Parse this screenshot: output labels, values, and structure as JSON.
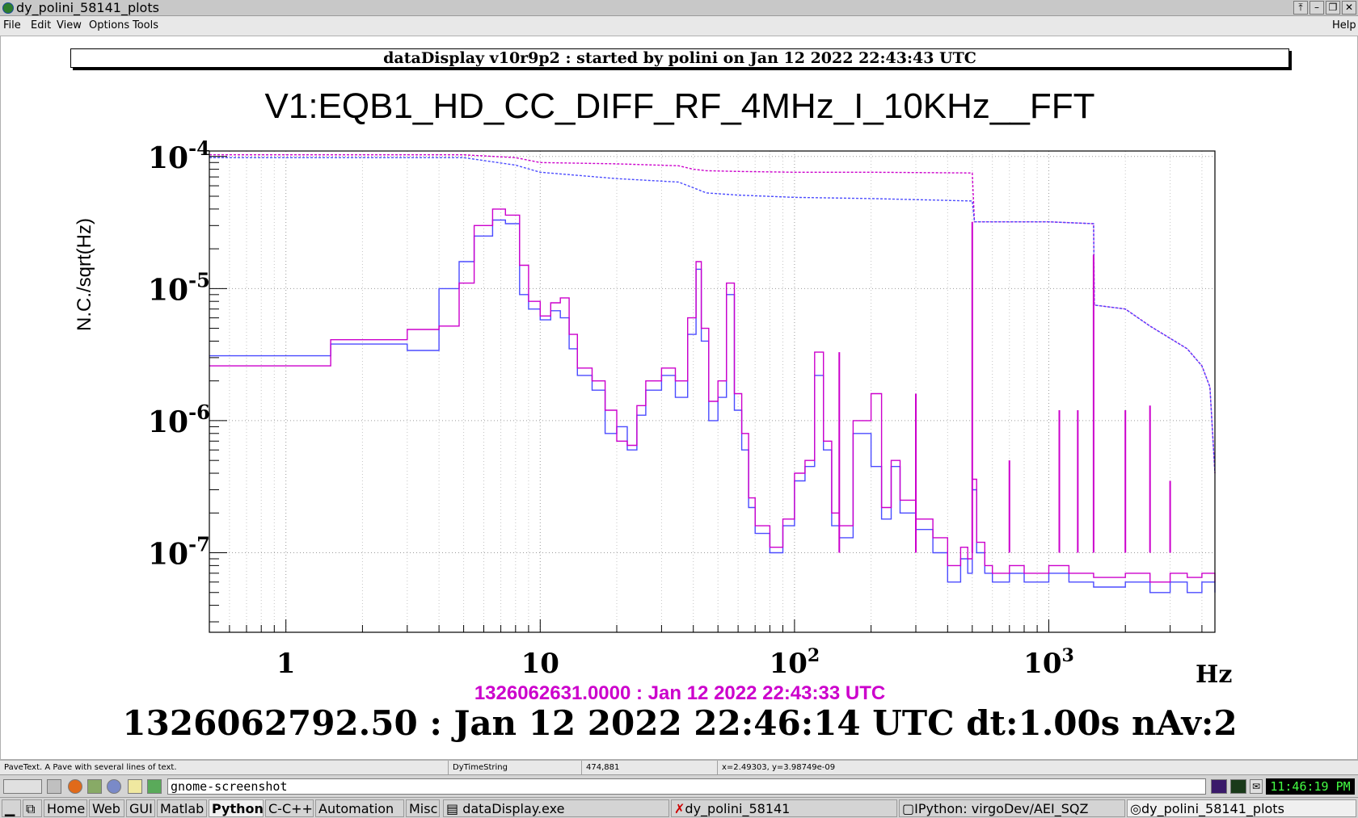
{
  "window": {
    "title": "dy_polini_58141_plots",
    "controls": [
      "⤒",
      "–",
      "❐",
      "✕"
    ]
  },
  "menu": {
    "items": [
      "File",
      "Edit",
      "View",
      "Options",
      "Tools"
    ],
    "help": "Help"
  },
  "plot": {
    "header": "dataDisplay v10r9p2 : started by polini on Jan 12 2022 22:43:43 UTC",
    "title": "V1:EQB1_HD_CC_DIFF_RF_4MHz_I_10KHz__FFT",
    "time_reference": "1326062631.0000 : Jan 12 2022 22:43:33 UTC",
    "time_main": "1326062792.50 : Jan 12 2022 22:46:14 UTC dt:1.00s nAv:2"
  },
  "chart_data": {
    "type": "line",
    "xscale": "log",
    "yscale": "log",
    "xlim": [
      0.5,
      4500
    ],
    "ylim": [
      2.5e-08,
      0.00011
    ],
    "ylabel": "N.C./sqrt(Hz)",
    "xlabel": "Hz",
    "x_ticks": [
      "1",
      "10",
      "10^2",
      "10^3"
    ],
    "y_ticks": [
      "10^-4",
      "10^-5",
      "10^-6",
      "10^-7"
    ],
    "grid": true,
    "series": [
      {
        "color": "#4b4bff",
        "style": "solid",
        "x": [
          0.5,
          1.5,
          3,
          4,
          4.8,
          5.5,
          6.5,
          7.3,
          8.3,
          9,
          10,
          11,
          12,
          13,
          14,
          16,
          18,
          20,
          22,
          24,
          26,
          30,
          34,
          38,
          41,
          43,
          46,
          50,
          54,
          58,
          62,
          66,
          70,
          80,
          90,
          100,
          110,
          120,
          130,
          140,
          150,
          170,
          200,
          220,
          240,
          260,
          300,
          350,
          400,
          450,
          480,
          500,
          520,
          560,
          600,
          700,
          800,
          1000,
          1200,
          1500,
          2000,
          2500,
          3000,
          3500,
          4000,
          4500
        ],
        "y": [
          3.1e-06,
          3.8e-06,
          3.4e-06,
          1e-05,
          1.6e-05,
          2.5e-05,
          3.3e-05,
          3.1e-05,
          9e-06,
          7e-06,
          5.8e-06,
          6.8e-06,
          6e-06,
          3.5e-06,
          2.2e-06,
          1.7e-06,
          8e-07,
          9e-07,
          6e-07,
          1.1e-06,
          1.7e-06,
          2.2e-06,
          1.5e-06,
          4.5e-06,
          1.4e-05,
          4e-06,
          1e-06,
          1.5e-06,
          9e-06,
          1.2e-06,
          6e-07,
          2.2e-07,
          1.4e-07,
          1e-07,
          1.6e-07,
          3.5e-07,
          4.5e-07,
          2.2e-06,
          6e-07,
          1.6e-07,
          1.3e-07,
          8e-07,
          4.5e-07,
          1.8e-07,
          4.5e-07,
          2e-07,
          1.5e-07,
          1e-07,
          6e-08,
          9e-08,
          7e-08,
          3e-07,
          1e-07,
          7e-08,
          6e-08,
          7e-08,
          6e-08,
          7e-08,
          6e-08,
          5.5e-08,
          6e-08,
          5e-08,
          6e-08,
          5e-08,
          6e-08,
          5e-08
        ]
      },
      {
        "color": "#cc00cc",
        "style": "solid",
        "x": [
          0.5,
          1.5,
          3,
          4,
          4.8,
          5.5,
          6.5,
          7.3,
          8.3,
          9,
          10,
          11,
          12,
          13,
          14,
          16,
          18,
          20,
          22,
          24,
          26,
          30,
          34,
          38,
          41,
          43,
          46,
          50,
          54,
          58,
          62,
          66,
          70,
          80,
          90,
          100,
          110,
          120,
          130,
          140,
          150,
          170,
          200,
          220,
          240,
          260,
          300,
          350,
          400,
          450,
          480,
          500,
          520,
          560,
          600,
          700,
          800,
          1000,
          1200,
          1500,
          2000,
          2500,
          3000,
          3500,
          4000,
          4500
        ],
        "y": [
          2.6e-06,
          4.1e-06,
          4.9e-06,
          5.2e-06,
          1.1e-05,
          3e-05,
          4e-05,
          3.6e-05,
          1.5e-05,
          8e-06,
          6.2e-06,
          7.8e-06,
          8.5e-06,
          4.5e-06,
          2.5e-06,
          2e-06,
          1.2e-06,
          7e-07,
          6.5e-07,
          1.3e-06,
          2e-06,
          2.5e-06,
          2e-06,
          6e-06,
          1.6e-05,
          5e-06,
          1.4e-06,
          2e-06,
          1.1e-05,
          1.6e-06,
          8e-07,
          2.6e-07,
          1.6e-07,
          1.1e-07,
          1.8e-07,
          4e-07,
          5e-07,
          3.3e-06,
          7e-07,
          2e-07,
          1.6e-07,
          1e-06,
          1.6e-06,
          2.2e-07,
          5e-07,
          2.5e-07,
          1.8e-07,
          1.3e-07,
          8e-08,
          1.1e-07,
          9e-08,
          3.6e-07,
          1.2e-07,
          8e-08,
          7e-08,
          8e-08,
          7e-08,
          8e-08,
          7e-08,
          6.5e-08,
          7e-08,
          6e-08,
          7e-08,
          6.5e-08,
          7e-08,
          6e-08
        ]
      },
      {
        "color": "#cc00cc",
        "style": "dashed",
        "x": [
          0.5,
          5,
          8,
          10,
          20,
          35,
          40,
          45,
          60,
          100,
          200,
          500,
          510,
          1000,
          1500,
          1510,
          2000,
          2500,
          3000,
          3500,
          4000,
          4300,
          4500
        ],
        "y": [
          0.000103,
          0.000103,
          9.8e-05,
          9e-05,
          8.8e-05,
          8.5e-05,
          8e-05,
          7.8e-05,
          7.7e-05,
          7.6e-05,
          7.6e-05,
          7.5e-05,
          3.2e-05,
          3.2e-05,
          3.1e-05,
          7.5e-06,
          7e-06,
          5.2e-06,
          4.2e-06,
          3.5e-06,
          2.6e-06,
          1.8e-06,
          4e-07
        ]
      },
      {
        "color": "#4b4bff",
        "style": "dashed",
        "x": [
          0.5,
          5,
          8,
          10,
          20,
          35,
          40,
          45,
          60,
          100,
          200,
          500,
          510,
          1000,
          1500,
          1510,
          2000,
          2500,
          3000,
          3500,
          4000,
          4300,
          4500
        ],
        "y": [
          9.8e-05,
          9.8e-05,
          8.6e-05,
          7.6e-05,
          6.8e-05,
          6.4e-05,
          5.8e-05,
          5.3e-05,
          5.1e-05,
          4.9e-05,
          4.8e-05,
          4.6e-05,
          3.2e-05,
          3.2e-05,
          3.1e-05,
          7.5e-06,
          7e-06,
          5.2e-06,
          4.2e-06,
          3.5e-06,
          2.6e-06,
          1.8e-06,
          4e-07
        ]
      }
    ],
    "spikes": [
      {
        "x": 500,
        "y": 3.2e-05
      },
      {
        "x": 1500,
        "y": 1.8e-05
      },
      {
        "x": 300,
        "y": 1.6e-06
      },
      {
        "x": 150,
        "y": 3.3e-06
      },
      {
        "x": 700,
        "y": 5e-07
      },
      {
        "x": 1100,
        "y": 1.2e-06
      },
      {
        "x": 1300,
        "y": 1.2e-06
      },
      {
        "x": 2000,
        "y": 1.2e-06
      },
      {
        "x": 2500,
        "y": 1.3e-06
      },
      {
        "x": 3000,
        "y": 3.5e-07
      }
    ]
  },
  "statusbar": {
    "object_info": "PaveText. A Pave with several lines of text.",
    "class": "DyTimeString",
    "pixel": "474,881",
    "coords": "x=2.49303, y=3.98749e-09"
  },
  "panel": {
    "command": "gnome-screenshot",
    "clock": "11:46:19 PM"
  },
  "taskbar": {
    "items": [
      "Home",
      "Web",
      "GUI",
      "Matlab",
      "Python",
      "C-C++",
      "Automation",
      "Misc"
    ],
    "active": "Python",
    "windows": [
      "dataDisplay.exe",
      "dy_polini_58141",
      "IPython: virgoDev/AEI_SQZ",
      "dy_polini_58141_plots"
    ]
  }
}
